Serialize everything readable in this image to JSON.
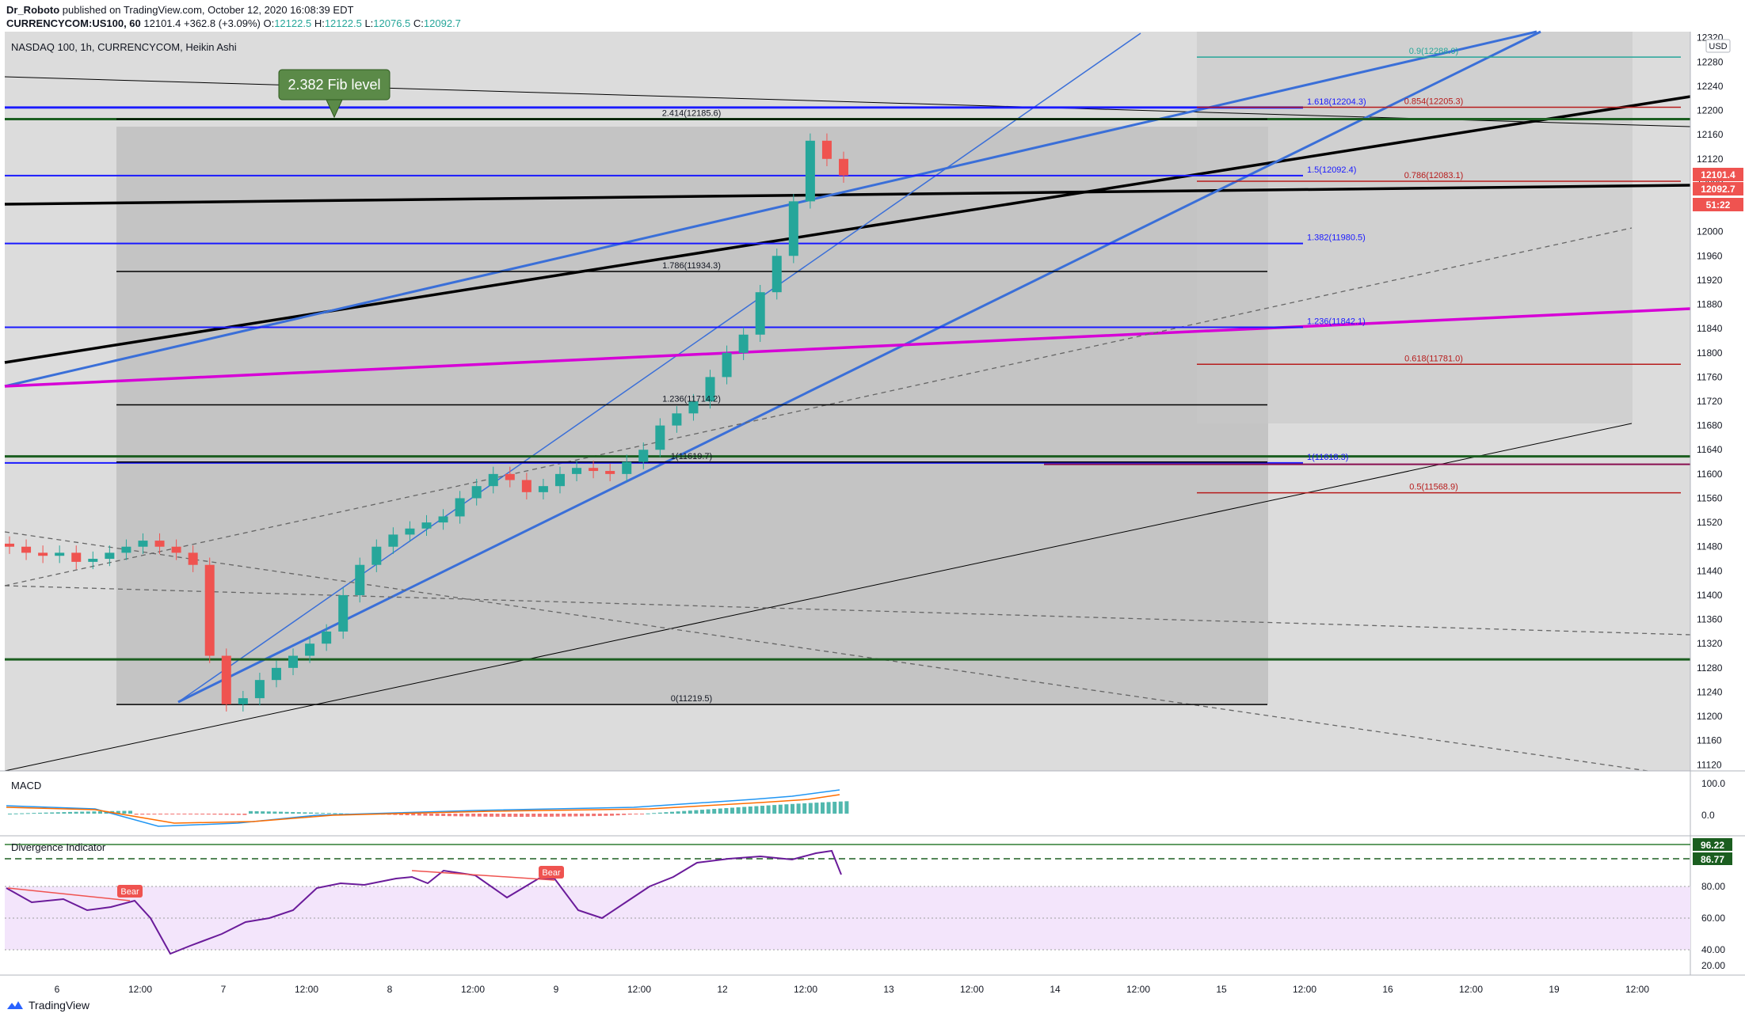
{
  "header": {
    "author": "Dr_Roboto",
    "published": "published on TradingView.com, October 12, 2020 16:08:39 EDT",
    "symbol": "CURRENCYCOM:US100, 60",
    "ohlc_prefix": "12101.4  +362.8 (+3.09%)",
    "o_label": "O:",
    "o_val": "12122.5",
    "h_label": "H:",
    "h_val": "12122.5",
    "l_label": "L:",
    "l_val": "12076.5",
    "c_label": "C:",
    "c_val": "12092.7"
  },
  "chart_title": "NASDAQ 100, 1h, CURRENCYCOM, Heikin Ashi",
  "callout": "2.382 Fib level",
  "currency": "USD",
  "price_tags": {
    "last": "12101.4",
    "close": "12092.7",
    "timer": "51:22"
  },
  "fib_left": [
    {
      "label": "2.414(12185.6)",
      "price": 12185.6
    },
    {
      "label": "1.786(11934.3)",
      "price": 11934.3
    },
    {
      "label": "1.236(11714.2)",
      "price": 11714.2
    },
    {
      "label": "1(11619.7)",
      "price": 11619.7
    },
    {
      "label": "0(11219.5)",
      "price": 11219.5
    }
  ],
  "fib_blue": [
    {
      "label": "1.618(12204.3)",
      "price": 12204.3
    },
    {
      "label": "1.5(12092.4)",
      "price": 12092.4
    },
    {
      "label": "1.382(11980.5)",
      "price": 11980.5
    },
    {
      "label": "1.236(11842.1)",
      "price": 11842.1
    },
    {
      "label": "1(11618.3)",
      "price": 11618.3
    }
  ],
  "fib_right": [
    {
      "label": "0.9(12288.0)",
      "price": 12288.0,
      "color": "#26a69a"
    },
    {
      "label": "0.854(12205.3)",
      "price": 12205.3,
      "color": "#b71c1c"
    },
    {
      "label": "0.786(12083.1)",
      "price": 12083.1,
      "color": "#b71c1c"
    },
    {
      "label": "0.618(11781.0)",
      "price": 11781.0,
      "color": "#b71c1c"
    },
    {
      "label": "0.5(11568.9)",
      "price": 11568.9,
      "color": "#b71c1c"
    }
  ],
  "macd": {
    "title": "MACD",
    "ticks": [
      "100.0",
      "0.0"
    ]
  },
  "divergence": {
    "title": "Divergence Indicator",
    "levels": {
      "upper": "96.22",
      "lower": "86.77"
    },
    "ticks": [
      "80.00",
      "60.00",
      "40.00",
      "20.00"
    ],
    "bear_labels": [
      "Bear",
      "Bear"
    ]
  },
  "time_labels": [
    "6",
    "12:00",
    "7",
    "12:00",
    "8",
    "12:00",
    "9",
    "12:00",
    "12",
    "12:00",
    "13",
    "12:00",
    "14",
    "12:00",
    "15",
    "12:00",
    "16",
    "12:00",
    "19",
    "12:00"
  ],
  "footer": "TradingView",
  "chart_data": {
    "type": "candlestick",
    "title": "NASDAQ 100, 1h, CURRENCYCOM, Heikin Ashi",
    "y_axis_ticks": [
      12320,
      12280,
      12240,
      12200,
      12160,
      12120,
      12080,
      12040,
      12000,
      11960,
      11920,
      11880,
      11840,
      11800,
      11760,
      11720,
      11680,
      11640,
      11600,
      11560,
      11520,
      11480,
      11440,
      11400,
      11360,
      11320,
      11280,
      11240,
      11200,
      11160,
      11120
    ],
    "ylim": [
      11110,
      12330
    ],
    "close_series_sample": [
      11480,
      11470,
      11465,
      11470,
      11455,
      11460,
      11470,
      11480,
      11490,
      11480,
      11470,
      11450,
      11300,
      11220,
      11230,
      11260,
      11280,
      11300,
      11320,
      11340,
      11400,
      11450,
      11480,
      11500,
      11510,
      11520,
      11530,
      11560,
      11580,
      11600,
      11590,
      11570,
      11580,
      11600,
      11610,
      11605,
      11600,
      11620,
      11640,
      11680,
      11700,
      11720,
      11760,
      11800,
      11830,
      11900,
      11960,
      12050,
      12150,
      12120,
      12092.7
    ],
    "last": 12092.7
  }
}
